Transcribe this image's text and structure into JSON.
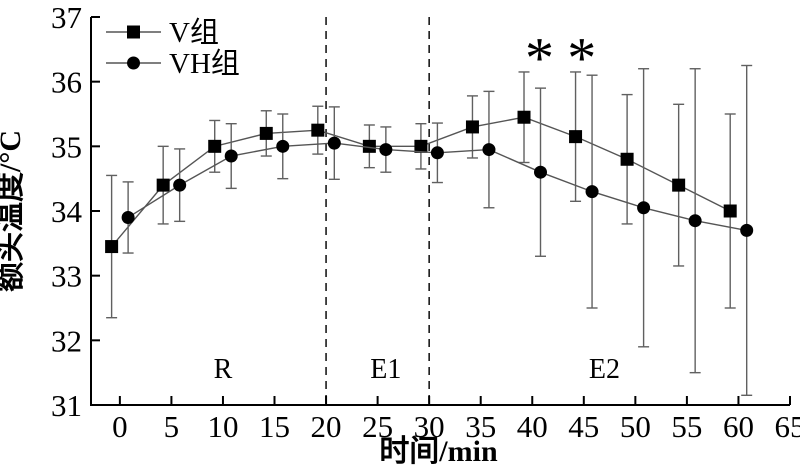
{
  "chart_data": {
    "type": "line",
    "title": "",
    "xlabel": "时间/min",
    "ylabel": "额头温度/°C",
    "xlim": [
      -2.8,
      65
    ],
    "ylim": [
      31,
      37
    ],
    "xticks": [
      0,
      5,
      10,
      15,
      20,
      25,
      30,
      35,
      40,
      45,
      50,
      55,
      60,
      65
    ],
    "yticks": [
      31,
      32,
      33,
      34,
      35,
      36,
      37
    ],
    "grid": false,
    "legend_position": "top-left",
    "x": [
      0,
      5,
      10,
      15,
      20,
      25,
      30,
      35,
      40,
      45,
      50,
      55,
      60
    ],
    "series": [
      {
        "name": "V组",
        "marker": "square",
        "x_offset": -0.8,
        "values": [
          33.45,
          34.4,
          35.0,
          35.2,
          35.25,
          35.0,
          35.0,
          35.3,
          35.45,
          35.15,
          34.8,
          34.4,
          34.0
        ],
        "errors": [
          1.1,
          0.6,
          0.4,
          0.35,
          0.37,
          0.33,
          0.35,
          0.48,
          0.7,
          1.0,
          1.0,
          1.25,
          1.5
        ]
      },
      {
        "name": "VH组",
        "marker": "circle",
        "x_offset": 0.8,
        "values": [
          33.9,
          34.4,
          34.85,
          35.0,
          35.05,
          34.95,
          34.9,
          34.95,
          34.6,
          34.3,
          34.05,
          33.85,
          33.7
        ],
        "errors": [
          0.55,
          0.56,
          0.5,
          0.5,
          0.56,
          0.35,
          0.46,
          0.9,
          1.3,
          1.8,
          2.15,
          2.35,
          2.55
        ]
      }
    ],
    "dashed_lines_x": [
      20,
      30
    ],
    "phase_labels": [
      {
        "text": "R",
        "x": 10
      },
      {
        "text": "E1",
        "x": 25.8
      },
      {
        "text": "E2",
        "x": 47
      }
    ],
    "significance_markers": [
      {
        "symbol": "*",
        "x": 40.7,
        "y": 36.5
      },
      {
        "symbol": "*",
        "x": 44.8,
        "y": 36.5
      }
    ]
  },
  "colors": {
    "background": "#ffffff",
    "axis": "#000000",
    "text": "#000000",
    "marker": "#000000",
    "series_line": "#555555",
    "error_bar": "#606060",
    "dashed_line": "#1a1a1a"
  }
}
